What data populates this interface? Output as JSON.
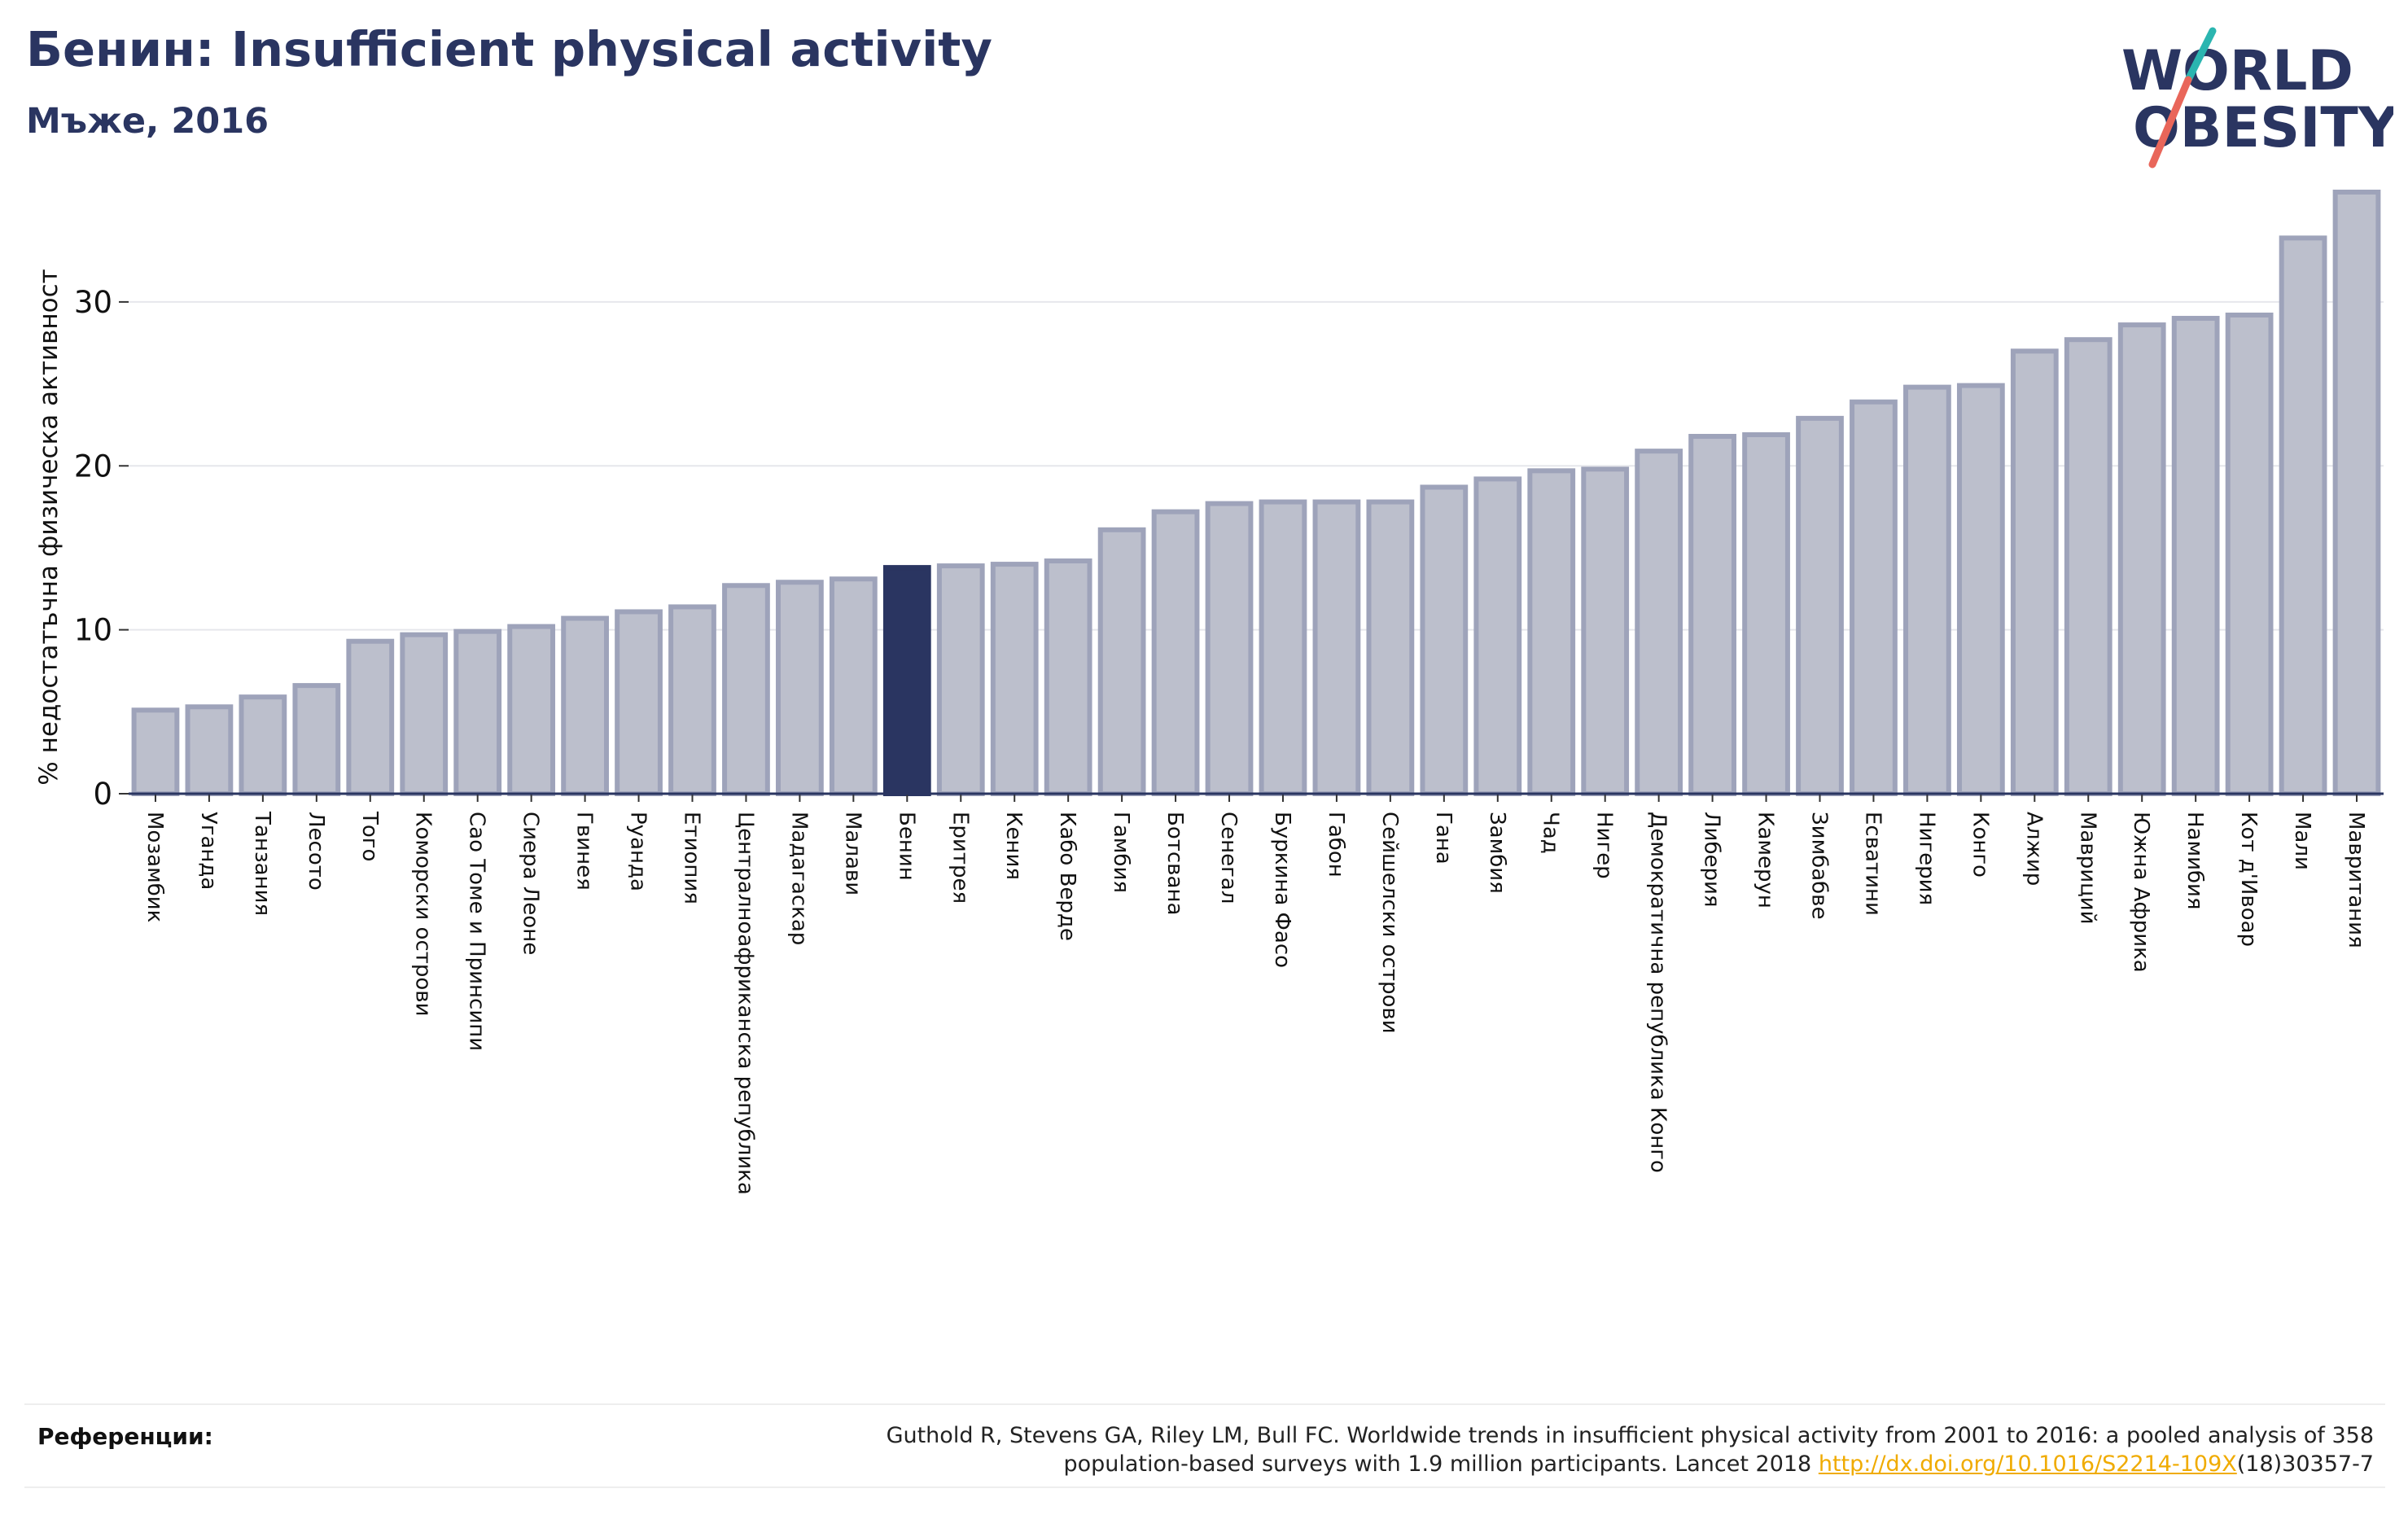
{
  "header": {
    "title": "Бенин: Insufficient physical activity",
    "subtitle": "Мъже, 2016"
  },
  "logo": {
    "line1": "WORLD",
    "line2": "OBESITY"
  },
  "footer": {
    "references_label": "Референции:",
    "reference_line1": "Guthold R, Stevens GA, Riley LM, Bull FC. Worldwide trends in insufficient physical activity from 2001 to 2016: a pooled analysis of 358",
    "reference_line2_prefix": "population-based surveys with 1.9 million participants. Lancet 2018 ",
    "reference_link": "http://dx.doi.org/10.1016/S2214-109X",
    "reference_suffix": "(18)30357-7"
  },
  "colors": {
    "title": "#2a3561",
    "bar": "#bcbfcc",
    "bar_edge": "#9ea3ba",
    "highlight": "#2a3561",
    "link": "#f0ab00",
    "logo_teal": "#2bb5b0",
    "logo_coral": "#e9665a"
  },
  "chart_data": {
    "type": "bar",
    "ylabel": "% недостатъчна физическа активност",
    "ylim": [
      0,
      36.5
    ],
    "yticks": [
      0,
      10,
      20,
      30
    ],
    "grid": true,
    "highlight": "Бенин",
    "categories": [
      "Мозамбик",
      "Уганда",
      "Танзания",
      "Лесото",
      "Того",
      "Коморски острови",
      "Сао Томе и Принсипи",
      "Сиера Леоне",
      "Гвинея",
      "Руанда",
      "Етиопия",
      "Централноафриканска република",
      "Мадагаскар",
      "Малави",
      "Бенин",
      "Еритрея",
      "Кения",
      "Кабо Верде",
      "Гамбия",
      "Ботсвана",
      "Сенегал",
      "Буркина Фасо",
      "Габон",
      "Сейшелски острови",
      "Гана",
      "Замбия",
      "Чад",
      "Нигер",
      "Демократична република Конго",
      "Либерия",
      "Камерун",
      "Зимбабве",
      "Есватини",
      "Нигерия",
      "Конго",
      "Алжир",
      "Мавриций",
      "Южна Африка",
      "Намибия",
      "Кот д'Ивоар",
      "Мали",
      "Мавритания"
    ],
    "values": [
      5.1,
      5.3,
      5.9,
      6.6,
      9.3,
      9.7,
      9.9,
      10.2,
      10.7,
      11.1,
      11.4,
      12.7,
      12.9,
      13.1,
      13.8,
      13.9,
      14.0,
      14.2,
      16.1,
      17.2,
      17.7,
      17.8,
      17.8,
      17.8,
      18.7,
      19.2,
      19.7,
      19.8,
      20.9,
      21.8,
      21.9,
      22.9,
      23.9,
      24.8,
      24.9,
      27.0,
      27.7,
      28.6,
      29.0,
      29.2,
      33.9,
      36.7
    ]
  }
}
